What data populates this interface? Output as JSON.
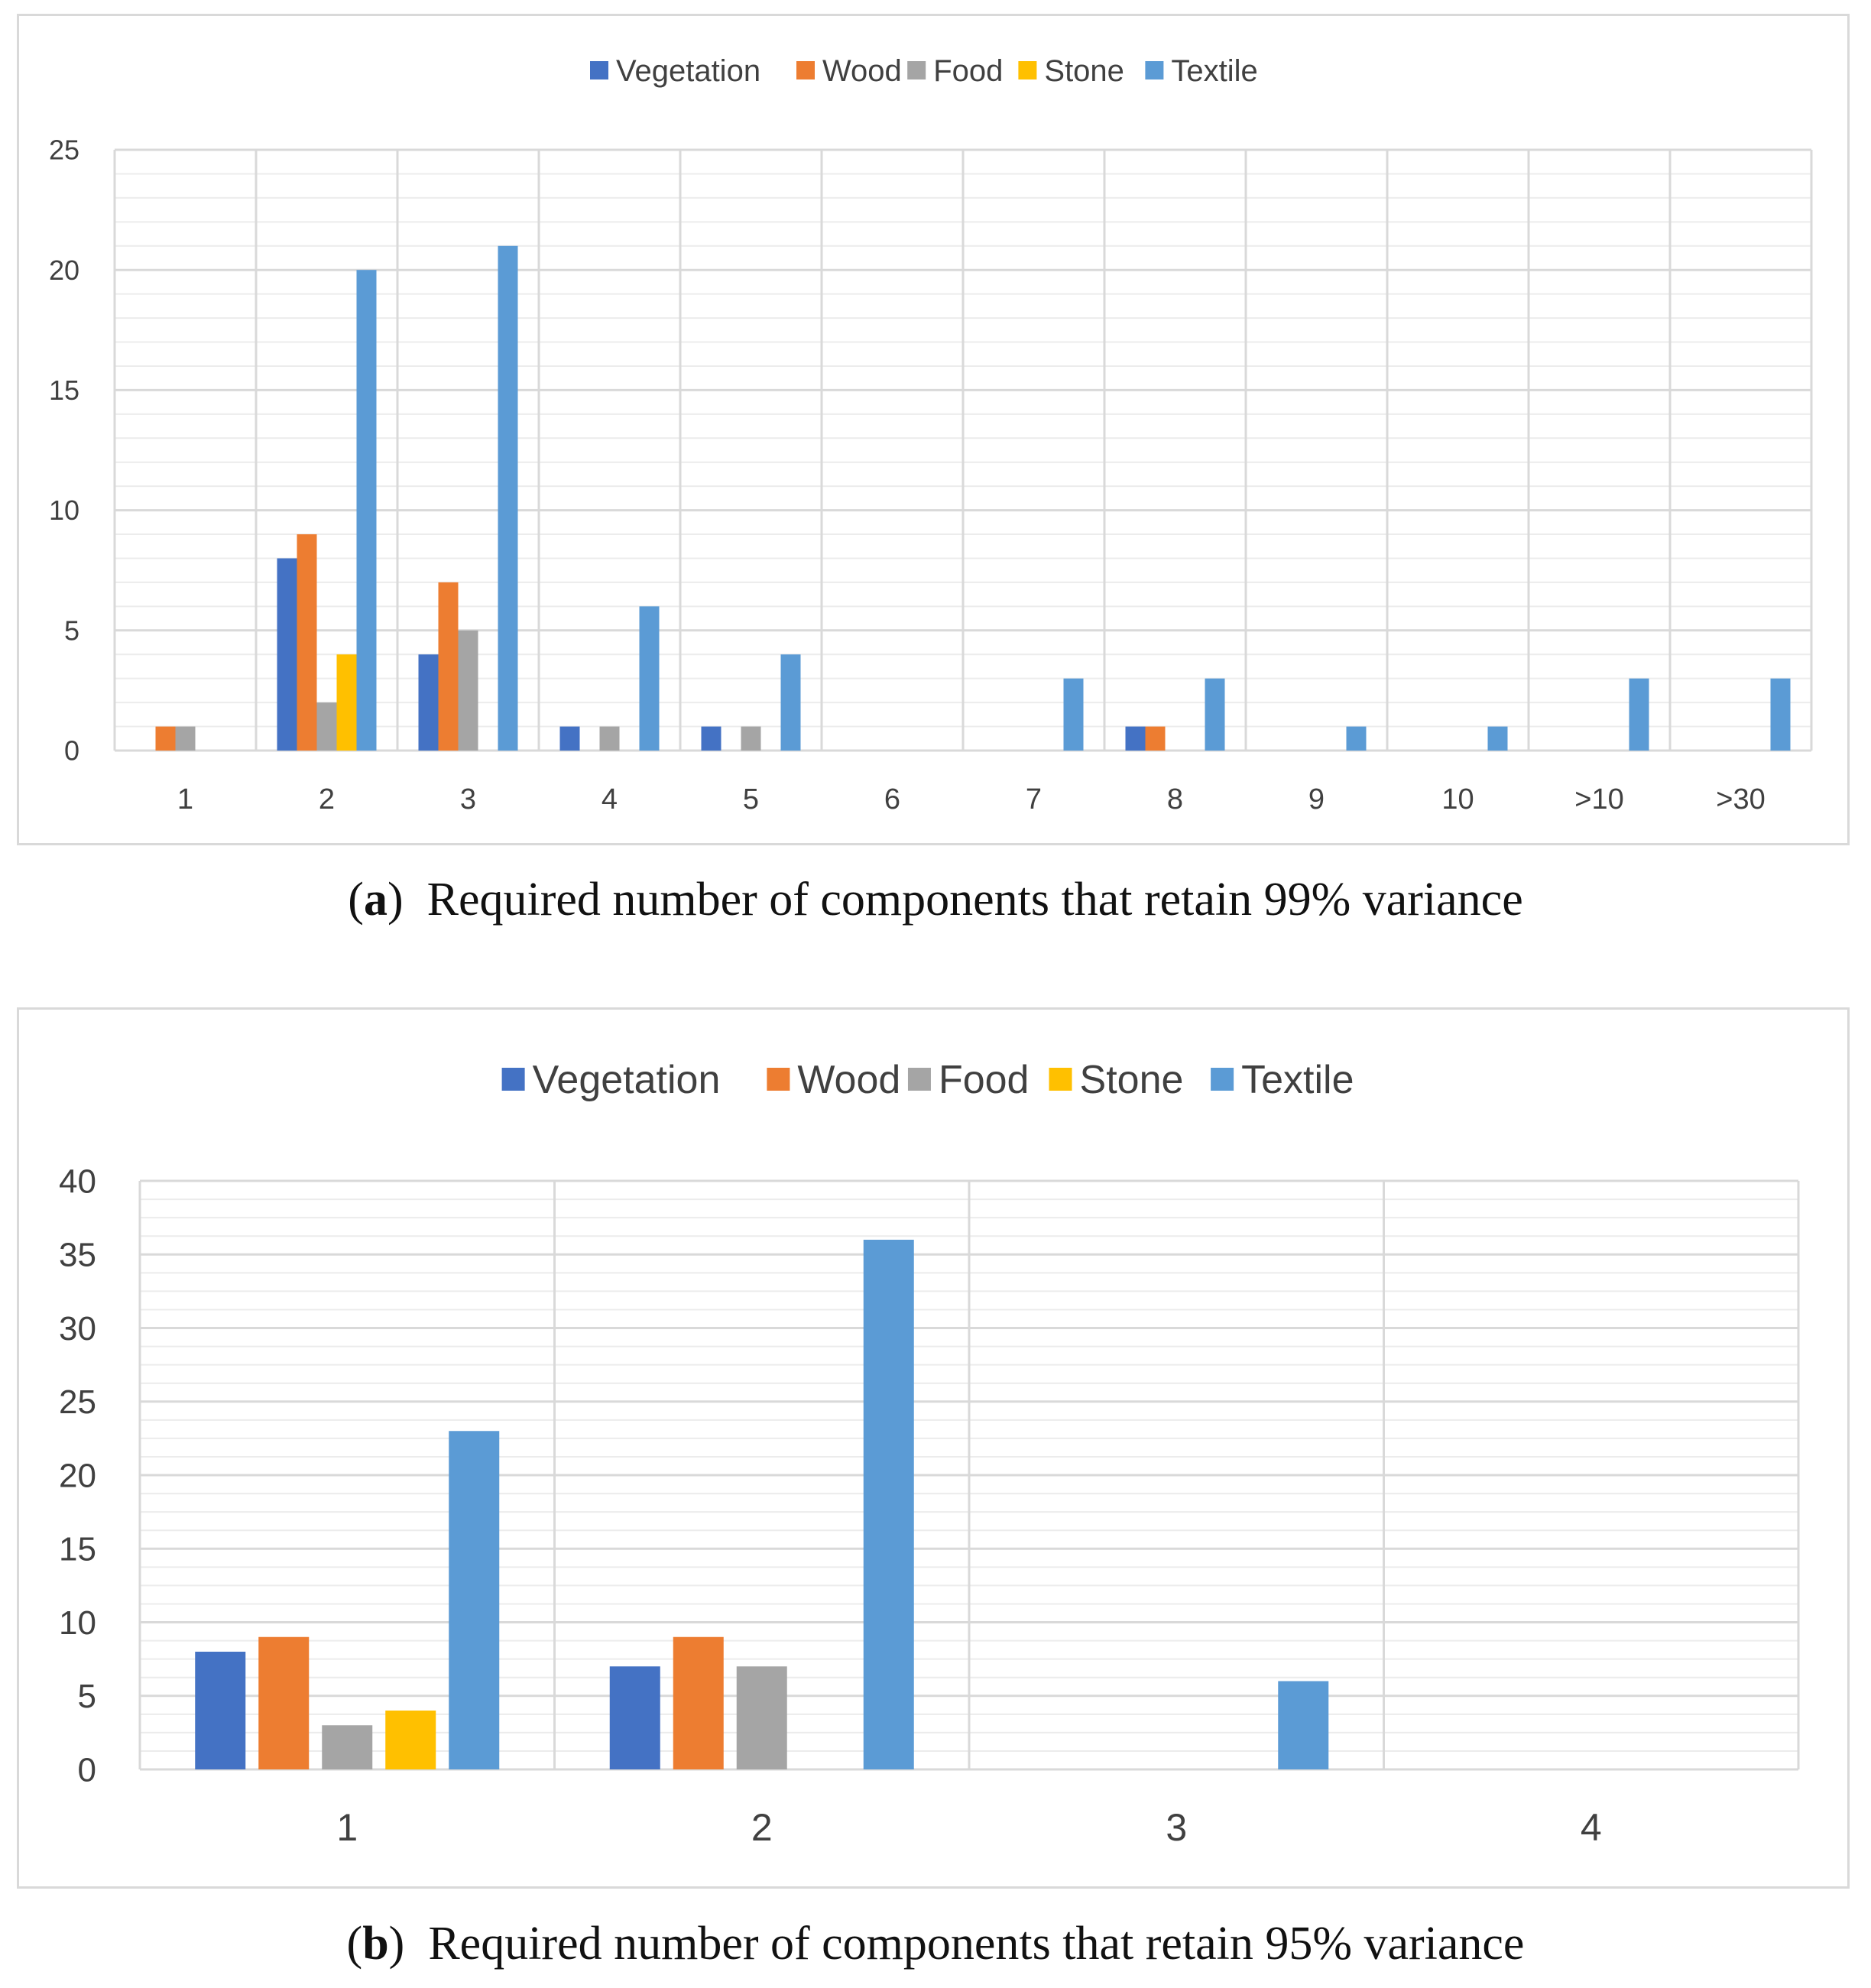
{
  "colors": {
    "Vegetation": "#4472c4",
    "Wood": "#ed7d31",
    "Food": "#a5a5a5",
    "Stone": "#ffc000",
    "Textile": "#5b9bd5",
    "grid": "#d9d9d9",
    "minor_grid": "#ececec"
  },
  "chart_data": [
    {
      "type": "bar",
      "caption_label": "a",
      "caption_text": "Required number of components that retain 99% variance",
      "categories": [
        "1",
        "2",
        "3",
        "4",
        "5",
        "6",
        "7",
        "8",
        "9",
        "10",
        ">10",
        ">30"
      ],
      "series": [
        {
          "name": "Vegetation",
          "values": [
            0,
            8,
            4,
            1,
            1,
            0,
            0,
            1,
            0,
            0,
            0,
            0
          ]
        },
        {
          "name": "Wood",
          "values": [
            1,
            9,
            7,
            0,
            0,
            0,
            0,
            1,
            0,
            0,
            0,
            0
          ]
        },
        {
          "name": "Food",
          "values": [
            1,
            2,
            5,
            1,
            1,
            0,
            0,
            0,
            0,
            0,
            0,
            0
          ]
        },
        {
          "name": "Stone",
          "values": [
            0,
            4,
            0,
            0,
            0,
            0,
            0,
            0,
            0,
            0,
            0,
            0
          ]
        },
        {
          "name": "Textile",
          "values": [
            0,
            20,
            21,
            6,
            4,
            0,
            3,
            3,
            1,
            1,
            3,
            3
          ]
        }
      ],
      "ylim": [
        0,
        25
      ],
      "yticks": [
        0,
        5,
        10,
        15,
        20,
        25
      ],
      "legend_position": "top-center",
      "grid": true
    },
    {
      "type": "bar",
      "caption_label": "b",
      "caption_text": "Required number of components that retain 95% variance",
      "categories": [
        "1",
        "2",
        "3",
        "4"
      ],
      "series": [
        {
          "name": "Vegetation",
          "values": [
            8,
            7,
            0,
            0
          ]
        },
        {
          "name": "Wood",
          "values": [
            9,
            9,
            0,
            0
          ]
        },
        {
          "name": "Food",
          "values": [
            3,
            7,
            0,
            0
          ]
        },
        {
          "name": "Stone",
          "values": [
            4,
            0,
            0,
            0
          ]
        },
        {
          "name": "Textile",
          "values": [
            23,
            36,
            6,
            0
          ]
        }
      ],
      "ylim": [
        0,
        40
      ],
      "yticks": [
        0,
        5,
        10,
        15,
        20,
        25,
        30,
        35,
        40
      ],
      "legend_position": "top-center",
      "grid": true
    }
  ]
}
